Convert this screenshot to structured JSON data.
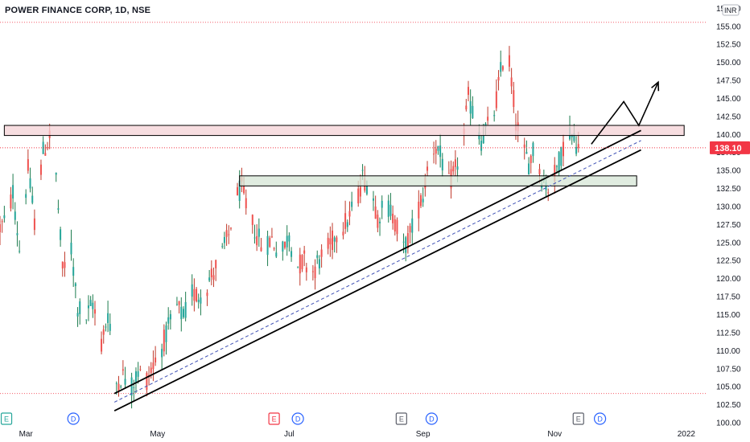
{
  "title": "POWER FINANCE CORP, 1D, NSE",
  "currency": "INR",
  "colors": {
    "up": "#26a69a",
    "down": "#ef5350",
    "up_dark": "#1e7d4f",
    "down_dark": "#c0392b",
    "last_price": "#f23645",
    "resistance_fill": "#f4d2d6",
    "support_fill": "#d6e6d6",
    "trend_line": "#000000",
    "mid_line": "#3f51b5",
    "event_earnings_green": "#26a69a",
    "event_earnings_red": "#f23645",
    "event_earnings_gray": "#5d606b",
    "event_dividend": "#2962ff"
  },
  "chart_data": {
    "type": "candlestick",
    "title": "POWER FINANCE CORP, 1D, NSE",
    "ylabel": "INR",
    "ylim": [
      99.5,
      158.6
    ],
    "y_ticks": [
      100,
      102.5,
      105,
      107.5,
      110,
      112.5,
      115,
      117.5,
      120,
      122.5,
      125,
      127.5,
      130,
      132.5,
      135,
      137.5,
      140,
      142.5,
      145,
      147.5,
      150,
      152.5,
      155,
      157.5
    ],
    "y_tick_labels": [
      "100.00",
      "102.50",
      "105.00",
      "107.50",
      "110.00",
      "112.50",
      "115.00",
      "117.50",
      "120.00",
      "122.50",
      "125.00",
      "127.50",
      "130.00",
      "132.50",
      "135.00",
      "137.50",
      "140.00",
      "142.50",
      "145.00",
      "147.50",
      "150.00",
      "152.50",
      "155.00",
      "157.50"
    ],
    "x_range": [
      "2021-02-17",
      "2022-01-10"
    ],
    "x_ticks": [
      {
        "date": "2021-03-01",
        "label": "Mar"
      },
      {
        "date": "2021-05-01",
        "label": "May"
      },
      {
        "date": "2021-07-01",
        "label": "Jul"
      },
      {
        "date": "2021-09-01",
        "label": "Sep"
      },
      {
        "date": "2021-11-01",
        "label": "Nov"
      },
      {
        "date": "2022-01-01",
        "label": "2022"
      }
    ],
    "last_price": 138.1,
    "last_price_label": "138.10",
    "reference_lines": [
      155.5,
      104.0
    ],
    "path": [
      [
        "2021-02-17",
        127.0
      ],
      [
        "2021-02-20",
        128.0
      ],
      [
        "2021-02-23",
        132.0
      ],
      [
        "2021-02-26",
        124.0
      ],
      [
        "2021-03-02",
        135.0
      ],
      [
        "2021-03-05",
        128.0
      ],
      [
        "2021-03-09",
        137.5
      ],
      [
        "2021-03-12",
        139.5
      ],
      [
        "2021-03-15",
        134.0
      ],
      [
        "2021-03-18",
        121.0
      ],
      [
        "2021-03-22",
        124.0
      ],
      [
        "2021-03-25",
        116.0
      ],
      [
        "2021-03-29",
        114.5
      ],
      [
        "2021-04-01",
        116.5
      ],
      [
        "2021-04-05",
        111.0
      ],
      [
        "2021-04-08",
        115.0
      ],
      [
        "2021-04-12",
        105.5
      ],
      [
        "2021-04-15",
        106.5
      ],
      [
        "2021-04-19",
        105.0
      ],
      [
        "2021-04-22",
        107.0
      ],
      [
        "2021-04-26",
        106.0
      ],
      [
        "2021-04-29",
        108.0
      ],
      [
        "2021-05-03",
        110.5
      ],
      [
        "2021-05-06",
        113.0
      ],
      [
        "2021-05-10",
        116.0
      ],
      [
        "2021-05-13",
        114.5
      ],
      [
        "2021-05-17",
        118.0
      ],
      [
        "2021-05-20",
        117.5
      ],
      [
        "2021-05-24",
        119.0
      ],
      [
        "2021-05-27",
        121.0
      ],
      [
        "2021-05-31",
        123.5
      ],
      [
        "2021-06-03",
        126.0
      ],
      [
        "2021-06-06",
        131.0
      ],
      [
        "2021-06-09",
        132.5
      ],
      [
        "2021-06-12",
        129.0
      ],
      [
        "2021-06-16",
        126.0
      ],
      [
        "2021-06-19",
        124.0
      ],
      [
        "2021-06-23",
        125.5
      ],
      [
        "2021-06-27",
        123.0
      ],
      [
        "2021-07-01",
        126.0
      ],
      [
        "2021-07-04",
        121.5
      ],
      [
        "2021-07-08",
        122.5
      ],
      [
        "2021-07-12",
        121.0
      ],
      [
        "2021-07-16",
        123.0
      ],
      [
        "2021-07-20",
        124.5
      ],
      [
        "2021-07-24",
        127.0
      ],
      [
        "2021-07-28",
        128.0
      ],
      [
        "2021-08-01",
        130.5
      ],
      [
        "2021-08-04",
        134.0
      ],
      [
        "2021-08-08",
        132.5
      ],
      [
        "2021-08-11",
        128.5
      ],
      [
        "2021-08-15",
        130.5
      ],
      [
        "2021-08-19",
        128.0
      ],
      [
        "2021-08-23",
        124.0
      ],
      [
        "2021-08-26",
        126.0
      ],
      [
        "2021-08-29",
        129.0
      ],
      [
        "2021-09-01",
        131.5
      ],
      [
        "2021-09-04",
        137.0
      ],
      [
        "2021-09-07",
        138.5
      ],
      [
        "2021-09-10",
        136.0
      ],
      [
        "2021-09-13",
        133.0
      ],
      [
        "2021-09-16",
        135.0
      ],
      [
        "2021-09-19",
        138.0
      ],
      [
        "2021-09-22",
        145.0
      ],
      [
        "2021-09-25",
        142.0
      ],
      [
        "2021-09-28",
        139.0
      ],
      [
        "2021-10-01",
        141.0
      ],
      [
        "2021-10-04",
        143.0
      ],
      [
        "2021-10-07",
        148.5
      ],
      [
        "2021-10-09",
        152.0
      ],
      [
        "2021-10-11",
        150.0
      ],
      [
        "2021-10-14",
        142.0
      ],
      [
        "2021-10-17",
        138.0
      ],
      [
        "2021-10-20",
        136.0
      ],
      [
        "2021-10-23",
        138.5
      ],
      [
        "2021-10-26",
        134.0
      ],
      [
        "2021-10-29",
        132.5
      ],
      [
        "2021-11-01",
        134.5
      ],
      [
        "2021-11-04",
        137.0
      ],
      [
        "2021-11-07",
        141.0
      ],
      [
        "2021-11-10",
        139.0
      ],
      [
        "2021-11-13",
        138.1
      ]
    ],
    "zones": [
      {
        "name": "resistance",
        "x0": "2021-02-19",
        "x1": "2021-12-31",
        "y0": 139.8,
        "y1": 141.2
      },
      {
        "name": "support",
        "x0": "2021-06-08",
        "x1": "2021-12-09",
        "y0": 132.8,
        "y1": 134.2
      }
    ],
    "trend_lines": [
      {
        "name": "upper",
        "x0": "2021-04-11",
        "y0": 104.0,
        "x1": "2021-12-11",
        "y1": 140.5
      },
      {
        "name": "lower",
        "x0": "2021-04-11",
        "y0": 101.6,
        "x1": "2021-12-11",
        "y1": 137.8
      },
      {
        "name": "mid",
        "x0": "2021-04-11",
        "y0": 102.8,
        "x1": "2021-12-11",
        "y1": 139.1
      }
    ],
    "projection": [
      [
        "2021-11-18",
        138.6
      ],
      [
        "2021-12-03",
        144.5
      ],
      [
        "2021-12-10",
        141.2
      ],
      [
        "2021-12-19",
        147.2
      ]
    ],
    "events": [
      {
        "date": "2021-02-20",
        "letter": "E",
        "kind": "earnings_green"
      },
      {
        "date": "2021-03-23",
        "letter": "D",
        "kind": "dividend"
      },
      {
        "date": "2021-06-24",
        "letter": "E",
        "kind": "earnings_red"
      },
      {
        "date": "2021-07-05",
        "letter": "D",
        "kind": "dividend"
      },
      {
        "date": "2021-08-22",
        "letter": "E",
        "kind": "earnings_gray"
      },
      {
        "date": "2021-09-05",
        "letter": "D",
        "kind": "dividend"
      },
      {
        "date": "2021-11-12",
        "letter": "E",
        "kind": "earnings_gray"
      },
      {
        "date": "2021-11-22",
        "letter": "D",
        "kind": "dividend"
      }
    ],
    "grid": false
  }
}
